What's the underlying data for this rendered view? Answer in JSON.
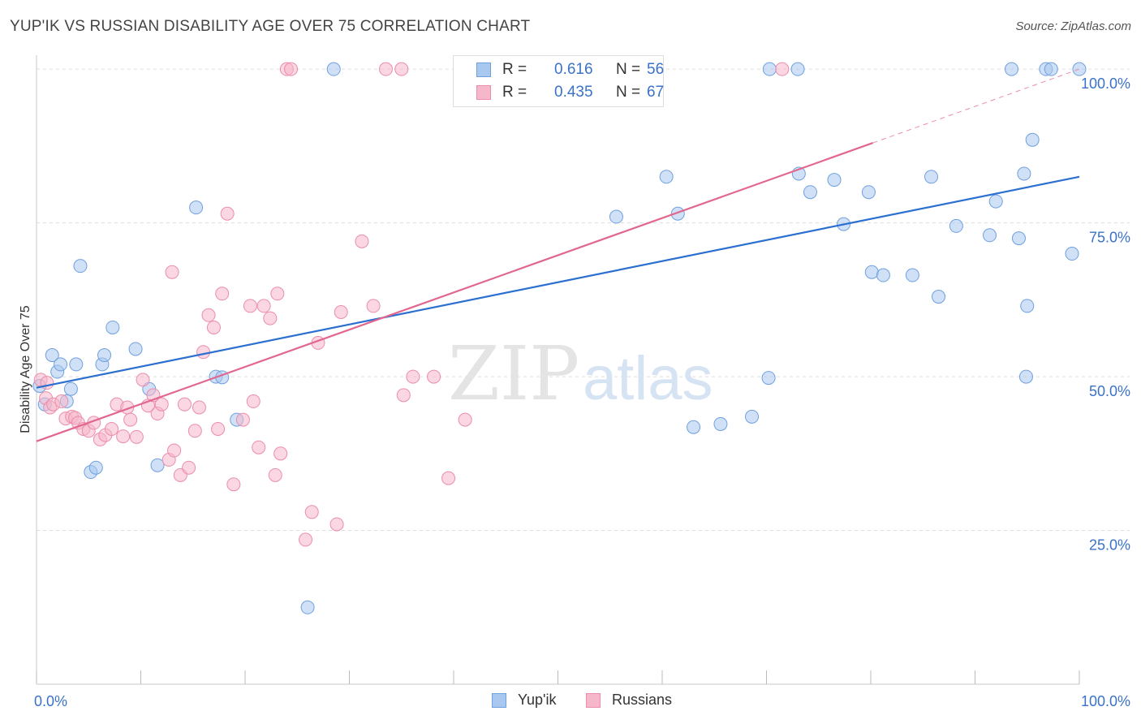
{
  "title": "YUP'IK VS RUSSIAN DISABILITY AGE OVER 75 CORRELATION CHART",
  "source": "Source: ZipAtlas.com",
  "watermark": {
    "zip": "ZIP",
    "atlas": "atlas"
  },
  "legend": {
    "r_label": "R =",
    "n_label": "N =",
    "rows": [
      {
        "r": "0.616",
        "n": "56"
      },
      {
        "r": "0.435",
        "n": "67"
      }
    ]
  },
  "bottom_legend": [
    "Yup'ik",
    "Russians"
  ],
  "colors": {
    "blue_fill": "#a9c8f0",
    "blue_stroke": "#6fa0de",
    "blue_line": "#2b6fd0",
    "pink_fill": "#f6b7ca",
    "pink_stroke": "#eb8dab",
    "pink_line": "#e2678f",
    "grid": "#dddddd",
    "tick_label": "#3a72c9"
  },
  "chart_data": {
    "type": "scatter",
    "title": "YUP'IK VS RUSSIAN DISABILITY AGE OVER 75 CORRELATION CHART",
    "xlabel": "",
    "ylabel": "Disability Age Over 75",
    "xlim": [
      0,
      100
    ],
    "ylim": [
      0,
      102
    ],
    "x_tick_labels": [
      "0.0%",
      "100.0%"
    ],
    "y_ticks": [
      25,
      50,
      75,
      100
    ],
    "y_tick_labels": [
      "25.0%",
      "50.0%",
      "75.0%",
      "100.0%"
    ],
    "grid": true,
    "legend_position": "top-center",
    "series": [
      {
        "name": "Yup'ik",
        "R": 0.616,
        "N": 56,
        "trend": {
          "x": [
            0,
            100
          ],
          "y": [
            48.2,
            82.5
          ],
          "dashed_extension": false
        },
        "points": [
          [
            0.3,
            48.5
          ],
          [
            0.8,
            45.5
          ],
          [
            1.5,
            53.5
          ],
          [
            2.0,
            50.8
          ],
          [
            2.3,
            52.0
          ],
          [
            2.9,
            46.0
          ],
          [
            3.3,
            48.0
          ],
          [
            3.8,
            52.0
          ],
          [
            4.2,
            68.0
          ],
          [
            5.2,
            34.5
          ],
          [
            5.7,
            35.2
          ],
          [
            6.3,
            52.0
          ],
          [
            6.5,
            53.5
          ],
          [
            7.3,
            58.0
          ],
          [
            9.5,
            54.5
          ],
          [
            10.8,
            48.0
          ],
          [
            11.6,
            35.6
          ],
          [
            15.3,
            77.5
          ],
          [
            17.2,
            50.0
          ],
          [
            17.8,
            49.9
          ],
          [
            19.2,
            43.0
          ],
          [
            26.0,
            12.5
          ],
          [
            28.5,
            100
          ],
          [
            58.5,
            100
          ],
          [
            55.6,
            76.0
          ],
          [
            60.4,
            82.5
          ],
          [
            61.5,
            76.5
          ],
          [
            63.0,
            41.8
          ],
          [
            65.6,
            42.3
          ],
          [
            68.6,
            43.5
          ],
          [
            70.2,
            49.8
          ],
          [
            70.3,
            100
          ],
          [
            73.0,
            100
          ],
          [
            73.1,
            83.0
          ],
          [
            74.2,
            80.0
          ],
          [
            76.5,
            82.0
          ],
          [
            77.4,
            74.8
          ],
          [
            79.8,
            80.0
          ],
          [
            80.1,
            67.0
          ],
          [
            81.2,
            66.5
          ],
          [
            84.0,
            66.5
          ],
          [
            85.8,
            82.5
          ],
          [
            86.5,
            63.0
          ],
          [
            88.2,
            74.5
          ],
          [
            91.4,
            73.0
          ],
          [
            92.0,
            78.5
          ],
          [
            93.5,
            100
          ],
          [
            94.2,
            72.5
          ],
          [
            94.7,
            83.0
          ],
          [
            95.0,
            61.5
          ],
          [
            94.9,
            50.0
          ],
          [
            95.5,
            88.5
          ],
          [
            96.8,
            100
          ],
          [
            97.3,
            100
          ],
          [
            99.3,
            70.0
          ],
          [
            100.0,
            100
          ]
        ]
      },
      {
        "name": "Russians",
        "R": 0.435,
        "N": 67,
        "trend": {
          "x": [
            0,
            80.2
          ],
          "y": [
            39.5,
            88.0
          ],
          "dashed_extension": true,
          "dash_to": [
            100,
            100
          ]
        },
        "points": [
          [
            0.4,
            49.5
          ],
          [
            0.9,
            46.5
          ],
          [
            1.3,
            45.0
          ],
          [
            1.6,
            45.5
          ],
          [
            2.4,
            46.0
          ],
          [
            2.8,
            43.2
          ],
          [
            3.4,
            43.5
          ],
          [
            3.7,
            43.3
          ],
          [
            4.0,
            42.5
          ],
          [
            4.5,
            41.5
          ],
          [
            5.0,
            41.2
          ],
          [
            5.5,
            42.5
          ],
          [
            6.1,
            39.8
          ],
          [
            6.6,
            40.5
          ],
          [
            7.2,
            41.5
          ],
          [
            7.7,
            45.5
          ],
          [
            8.3,
            40.3
          ],
          [
            8.7,
            45.0
          ],
          [
            9.0,
            43.0
          ],
          [
            9.6,
            40.2
          ],
          [
            10.2,
            49.5
          ],
          [
            10.7,
            45.3
          ],
          [
            11.2,
            47.0
          ],
          [
            11.6,
            44.0
          ],
          [
            12.0,
            45.5
          ],
          [
            12.7,
            36.5
          ],
          [
            13.0,
            67.0
          ],
          [
            13.2,
            38.0
          ],
          [
            13.8,
            34.0
          ],
          [
            14.2,
            45.5
          ],
          [
            14.6,
            35.2
          ],
          [
            15.2,
            41.2
          ],
          [
            15.6,
            45.0
          ],
          [
            16.0,
            54.0
          ],
          [
            16.5,
            60.0
          ],
          [
            17.0,
            58.0
          ],
          [
            17.4,
            41.5
          ],
          [
            17.8,
            63.5
          ],
          [
            18.3,
            76.5
          ],
          [
            18.9,
            32.5
          ],
          [
            19.8,
            43.0
          ],
          [
            20.5,
            61.5
          ],
          [
            20.8,
            46.0
          ],
          [
            21.3,
            38.5
          ],
          [
            21.8,
            61.5
          ],
          [
            22.4,
            59.5
          ],
          [
            22.9,
            34.0
          ],
          [
            23.1,
            63.5
          ],
          [
            23.4,
            37.5
          ],
          [
            24.0,
            100
          ],
          [
            24.4,
            100
          ],
          [
            25.8,
            23.5
          ],
          [
            26.4,
            28.0
          ],
          [
            27.0,
            55.5
          ],
          [
            28.8,
            26.0
          ],
          [
            29.2,
            60.5
          ],
          [
            31.2,
            72.0
          ],
          [
            32.3,
            61.5
          ],
          [
            33.5,
            100
          ],
          [
            35.0,
            100
          ],
          [
            35.2,
            47.0
          ],
          [
            36.1,
            50.0
          ],
          [
            38.1,
            50.0
          ],
          [
            39.5,
            33.5
          ],
          [
            41.1,
            43.0
          ],
          [
            71.5,
            100
          ],
          [
            1.0,
            49.0
          ]
        ]
      }
    ]
  }
}
